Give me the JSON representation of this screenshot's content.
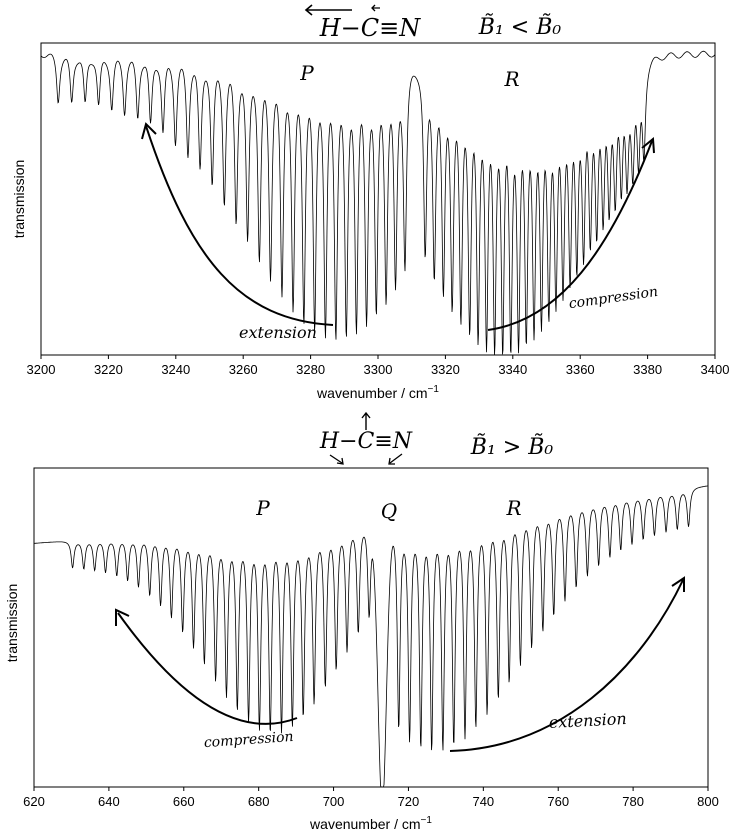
{
  "chart_data": [
    {
      "type": "line",
      "molecule": "H−C≡N",
      "condition": "B̃₁ < B̃₀",
      "xlabel": "wavenumber / cm",
      "xlabel_sup": "−1",
      "ylabel": "transmission",
      "xlim": [
        3200,
        3400
      ],
      "xticks": [
        3200,
        3220,
        3240,
        3260,
        3280,
        3300,
        3320,
        3340,
        3360,
        3380,
        3400
      ],
      "grid": false,
      "branches": [
        {
          "name": "P",
          "lines_cm1": [
            3308.0,
            3305.2,
            3302.4,
            3299.5,
            3296.6,
            3293.6,
            3290.6,
            3287.5,
            3284.4,
            3281.2,
            3278.0,
            3274.8,
            3271.5,
            3268.1,
            3264.8,
            3261.3,
            3257.9,
            3254.4,
            3250.8,
            3247.2,
            3243.6,
            3239.9,
            3236.2,
            3232.5,
            3228.7,
            3224.8,
            3221.0,
            3217.1,
            3213.1,
            3209.1,
            3205.1
          ]
        },
        {
          "name": "R",
          "lines_cm1": [
            3314.0,
            3316.7,
            3319.4,
            3322.0,
            3324.6,
            3327.2,
            3329.7,
            3332.2,
            3334.6,
            3337.0,
            3339.4,
            3341.7,
            3344.0,
            3346.3,
            3348.5,
            3350.7,
            3352.8,
            3354.9,
            3357.0,
            3359.0,
            3361.0,
            3363.0,
            3364.9,
            3366.8,
            3368.6,
            3370.4,
            3372.2,
            3373.9,
            3375.6,
            3377.3,
            3378.9
          ]
        }
      ],
      "annotations": {
        "left": "extension",
        "right": "compression"
      }
    },
    {
      "type": "line",
      "molecule": "H−C≡N",
      "condition": "B̃₁ > B̃₀",
      "xlabel": "wavenumber / cm",
      "xlabel_sup": "−1",
      "ylabel": "transmission",
      "xlim": [
        620,
        800
      ],
      "xticks": [
        620,
        640,
        660,
        680,
        700,
        720,
        740,
        760,
        780,
        800
      ],
      "grid": false,
      "branches": [
        {
          "name": "P",
          "lines_cm1": [
            709.5,
            706.6,
            703.6,
            700.7,
            697.8,
            694.8,
            691.9,
            689.0,
            686.1,
            683.1,
            680.2,
            677.3,
            674.3,
            671.4,
            668.5,
            665.5,
            662.6,
            659.7,
            656.7,
            653.8,
            650.9,
            647.9,
            645.0,
            642.1,
            639.1,
            636.2,
            633.3,
            630.3
          ]
        },
        {
          "name": "Q",
          "center_cm1": 713
        },
        {
          "name": "R",
          "lines_cm1": [
            717.4,
            720.3,
            723.3,
            726.2,
            729.2,
            732.1,
            735.1,
            738.0,
            741.0,
            744.0,
            746.9,
            749.9,
            752.9,
            755.9,
            758.8,
            761.8,
            764.8,
            767.8,
            770.8,
            773.8,
            776.7,
            779.7,
            782.7,
            785.7,
            788.8,
            791.8,
            794.8
          ]
        }
      ],
      "annotations": {
        "left": "compression",
        "right": "extension"
      }
    }
  ]
}
